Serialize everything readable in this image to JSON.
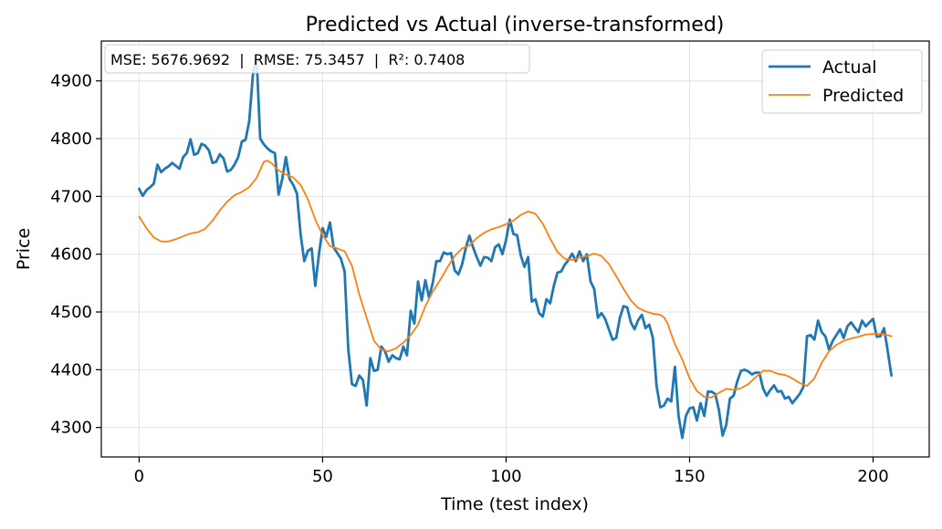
{
  "chart_data": {
    "type": "line",
    "title": "Predicted vs Actual (inverse-transformed)",
    "xlabel": "Time (test index)",
    "ylabel": "Price",
    "xlim": [
      -10.3,
      215.3
    ],
    "ylim": [
      4249,
      4969
    ],
    "xticks": [
      0,
      50,
      100,
      150,
      200
    ],
    "yticks": [
      4300,
      4400,
      4500,
      4600,
      4700,
      4800,
      4900
    ],
    "grid": true,
    "legend_position": "top-right",
    "annotation": "MSE: 5676.9692  |  RMSE: 75.3457  |  R²: 0.7408",
    "series": [
      {
        "name": "Actual",
        "color": "#1f77b4",
        "points": [
          [
            0,
            4713
          ],
          [
            1,
            4701
          ],
          [
            2,
            4711
          ],
          [
            3,
            4716
          ],
          [
            4,
            4722
          ],
          [
            5,
            4755
          ],
          [
            6,
            4742
          ],
          [
            7,
            4748
          ],
          [
            8,
            4752
          ],
          [
            9,
            4758
          ],
          [
            10,
            4753
          ],
          [
            11,
            4748
          ],
          [
            12,
            4768
          ],
          [
            13,
            4775
          ],
          [
            14,
            4799
          ],
          [
            15,
            4772
          ],
          [
            16,
            4775
          ],
          [
            17,
            4791
          ],
          [
            18,
            4788
          ],
          [
            19,
            4780
          ],
          [
            20,
            4758
          ],
          [
            21,
            4760
          ],
          [
            22,
            4773
          ],
          [
            23,
            4766
          ],
          [
            24,
            4743
          ],
          [
            25,
            4746
          ],
          [
            26,
            4755
          ],
          [
            27,
            4768
          ],
          [
            28,
            4795
          ],
          [
            29,
            4798
          ],
          [
            30,
            4830
          ],
          [
            31,
            4910
          ],
          [
            32,
            4942
          ],
          [
            33,
            4800
          ],
          [
            34,
            4790
          ],
          [
            35,
            4783
          ],
          [
            36,
            4778
          ],
          [
            37,
            4775
          ],
          [
            38,
            4703
          ],
          [
            39,
            4730
          ],
          [
            40,
            4768
          ],
          [
            41,
            4730
          ],
          [
            42,
            4720
          ],
          [
            43,
            4705
          ],
          [
            44,
            4635
          ],
          [
            45,
            4588
          ],
          [
            46,
            4606
          ],
          [
            47,
            4610
          ],
          [
            48,
            4545
          ],
          [
            49,
            4600
          ],
          [
            50,
            4645
          ],
          [
            51,
            4630
          ],
          [
            52,
            4655
          ],
          [
            53,
            4612
          ],
          [
            54,
            4602
          ],
          [
            55,
            4592
          ],
          [
            56,
            4570
          ],
          [
            57,
            4435
          ],
          [
            58,
            4375
          ],
          [
            59,
            4372
          ],
          [
            60,
            4390
          ],
          [
            61,
            4382
          ],
          [
            62,
            4338
          ],
          [
            63,
            4420
          ],
          [
            64,
            4398
          ],
          [
            65,
            4400
          ],
          [
            66,
            4440
          ],
          [
            67,
            4432
          ],
          [
            68,
            4414
          ],
          [
            69,
            4425
          ],
          [
            70,
            4420
          ],
          [
            71,
            4418
          ],
          [
            72,
            4440
          ],
          [
            73,
            4425
          ],
          [
            74,
            4502
          ],
          [
            75,
            4480
          ],
          [
            76,
            4553
          ],
          [
            77,
            4520
          ],
          [
            78,
            4555
          ],
          [
            79,
            4525
          ],
          [
            80,
            4550
          ],
          [
            81,
            4588
          ],
          [
            82,
            4588
          ],
          [
            83,
            4603
          ],
          [
            84,
            4600
          ],
          [
            85,
            4602
          ],
          [
            86,
            4572
          ],
          [
            87,
            4565
          ],
          [
            88,
            4582
          ],
          [
            89,
            4610
          ],
          [
            90,
            4632
          ],
          [
            91,
            4612
          ],
          [
            92,
            4595
          ],
          [
            93,
            4580
          ],
          [
            94,
            4595
          ],
          [
            95,
            4594
          ],
          [
            96,
            4588
          ],
          [
            97,
            4612
          ],
          [
            98,
            4617
          ],
          [
            99,
            4600
          ],
          [
            100,
            4625
          ],
          [
            101,
            4660
          ],
          [
            102,
            4635
          ],
          [
            103,
            4633
          ],
          [
            104,
            4598
          ],
          [
            105,
            4578
          ],
          [
            106,
            4595
          ],
          [
            107,
            4518
          ],
          [
            108,
            4522
          ],
          [
            109,
            4498
          ],
          [
            110,
            4492
          ],
          [
            111,
            4522
          ],
          [
            112,
            4515
          ],
          [
            113,
            4545
          ],
          [
            114,
            4568
          ],
          [
            115,
            4570
          ],
          [
            116,
            4582
          ],
          [
            117,
            4590
          ],
          [
            118,
            4601
          ],
          [
            119,
            4588
          ],
          [
            120,
            4605
          ],
          [
            121,
            4588
          ],
          [
            122,
            4600
          ],
          [
            123,
            4553
          ],
          [
            124,
            4540
          ],
          [
            125,
            4490
          ],
          [
            126,
            4498
          ],
          [
            127,
            4488
          ],
          [
            128,
            4470
          ],
          [
            129,
            4452
          ],
          [
            130,
            4455
          ],
          [
            131,
            4490
          ],
          [
            132,
            4510
          ],
          [
            133,
            4508
          ],
          [
            134,
            4482
          ],
          [
            135,
            4470
          ],
          [
            136,
            4486
          ],
          [
            137,
            4495
          ],
          [
            138,
            4472
          ],
          [
            139,
            4478
          ],
          [
            140,
            4455
          ],
          [
            141,
            4372
          ],
          [
            142,
            4335
          ],
          [
            143,
            4338
          ],
          [
            144,
            4350
          ],
          [
            145,
            4345
          ],
          [
            146,
            4405
          ],
          [
            147,
            4320
          ],
          [
            148,
            4282
          ],
          [
            149,
            4320
          ],
          [
            150,
            4333
          ],
          [
            151,
            4335
          ],
          [
            152,
            4312
          ],
          [
            153,
            4342
          ],
          [
            154,
            4320
          ],
          [
            155,
            4362
          ],
          [
            156,
            4362
          ],
          [
            157,
            4358
          ],
          [
            158,
            4330
          ],
          [
            159,
            4286
          ],
          [
            160,
            4305
          ],
          [
            161,
            4350
          ],
          [
            162,
            4355
          ],
          [
            163,
            4380
          ],
          [
            164,
            4398
          ],
          [
            165,
            4400
          ],
          [
            166,
            4397
          ],
          [
            167,
            4392
          ],
          [
            168,
            4395
          ],
          [
            169,
            4395
          ],
          [
            170,
            4368
          ],
          [
            171,
            4355
          ],
          [
            172,
            4365
          ],
          [
            173,
            4373
          ],
          [
            174,
            4362
          ],
          [
            175,
            4363
          ],
          [
            176,
            4350
          ],
          [
            177,
            4353
          ],
          [
            178,
            4342
          ],
          [
            179,
            4350
          ],
          [
            180,
            4358
          ],
          [
            181,
            4370
          ],
          [
            182,
            4458
          ],
          [
            183,
            4460
          ],
          [
            184,
            4452
          ],
          [
            185,
            4485
          ],
          [
            186,
            4465
          ],
          [
            187,
            4458
          ],
          [
            188,
            4435
          ],
          [
            189,
            4450
          ],
          [
            190,
            4460
          ],
          [
            191,
            4470
          ],
          [
            192,
            4455
          ],
          [
            193,
            4475
          ],
          [
            194,
            4482
          ],
          [
            195,
            4473
          ],
          [
            196,
            4465
          ],
          [
            197,
            4485
          ],
          [
            198,
            4475
          ],
          [
            199,
            4482
          ],
          [
            200,
            4488
          ],
          [
            201,
            4457
          ],
          [
            202,
            4458
          ],
          [
            203,
            4472
          ],
          [
            204,
            4432
          ],
          [
            205,
            4390
          ]
        ]
      },
      {
        "name": "Predicted",
        "color": "#ff7f0e",
        "points": [
          [
            0,
            4665
          ],
          [
            2,
            4645
          ],
          [
            4,
            4629
          ],
          [
            6,
            4622
          ],
          [
            8,
            4622
          ],
          [
            10,
            4626
          ],
          [
            12,
            4631
          ],
          [
            14,
            4636
          ],
          [
            16,
            4638
          ],
          [
            18,
            4644
          ],
          [
            20,
            4658
          ],
          [
            22,
            4676
          ],
          [
            24,
            4691
          ],
          [
            26,
            4702
          ],
          [
            28,
            4708
          ],
          [
            30,
            4716
          ],
          [
            32,
            4732
          ],
          [
            34,
            4760
          ],
          [
            35,
            4762
          ],
          [
            36,
            4758
          ],
          [
            38,
            4745
          ],
          [
            40,
            4738
          ],
          [
            42,
            4733
          ],
          [
            44,
            4720
          ],
          [
            46,
            4695
          ],
          [
            48,
            4660
          ],
          [
            50,
            4633
          ],
          [
            52,
            4614
          ],
          [
            54,
            4610
          ],
          [
            56,
            4605
          ],
          [
            58,
            4580
          ],
          [
            60,
            4530
          ],
          [
            62,
            4490
          ],
          [
            64,
            4450
          ],
          [
            66,
            4435
          ],
          [
            68,
            4432
          ],
          [
            70,
            4437
          ],
          [
            72,
            4447
          ],
          [
            74,
            4460
          ],
          [
            76,
            4478
          ],
          [
            78,
            4510
          ],
          [
            80,
            4535
          ],
          [
            82,
            4555
          ],
          [
            84,
            4577
          ],
          [
            86,
            4597
          ],
          [
            88,
            4610
          ],
          [
            90,
            4615
          ],
          [
            92,
            4628
          ],
          [
            94,
            4637
          ],
          [
            96,
            4643
          ],
          [
            98,
            4647
          ],
          [
            100,
            4652
          ],
          [
            102,
            4658
          ],
          [
            104,
            4668
          ],
          [
            106,
            4674
          ],
          [
            108,
            4670
          ],
          [
            110,
            4653
          ],
          [
            112,
            4627
          ],
          [
            114,
            4604
          ],
          [
            116,
            4592
          ],
          [
            118,
            4590
          ],
          [
            120,
            4594
          ],
          [
            122,
            4597
          ],
          [
            124,
            4601
          ],
          [
            126,
            4597
          ],
          [
            128,
            4583
          ],
          [
            130,
            4562
          ],
          [
            132,
            4540
          ],
          [
            134,
            4520
          ],
          [
            136,
            4507
          ],
          [
            138,
            4501
          ],
          [
            140,
            4497
          ],
          [
            142,
            4495
          ],
          [
            143,
            4491
          ],
          [
            144,
            4480
          ],
          [
            146,
            4444
          ],
          [
            148,
            4418
          ],
          [
            150,
            4385
          ],
          [
            152,
            4363
          ],
          [
            154,
            4353
          ],
          [
            156,
            4352
          ],
          [
            158,
            4360
          ],
          [
            160,
            4367
          ],
          [
            162,
            4365
          ],
          [
            164,
            4368
          ],
          [
            166,
            4375
          ],
          [
            168,
            4387
          ],
          [
            170,
            4398
          ],
          [
            172,
            4398
          ],
          [
            174,
            4393
          ],
          [
            176,
            4391
          ],
          [
            178,
            4385
          ],
          [
            180,
            4377
          ],
          [
            182,
            4372
          ],
          [
            184,
            4385
          ],
          [
            186,
            4412
          ],
          [
            188,
            4432
          ],
          [
            190,
            4443
          ],
          [
            192,
            4450
          ],
          [
            194,
            4454
          ],
          [
            196,
            4457
          ],
          [
            198,
            4461
          ],
          [
            200,
            4462
          ],
          [
            202,
            4462
          ],
          [
            204,
            4460
          ],
          [
            205,
            4458
          ]
        ]
      }
    ]
  }
}
